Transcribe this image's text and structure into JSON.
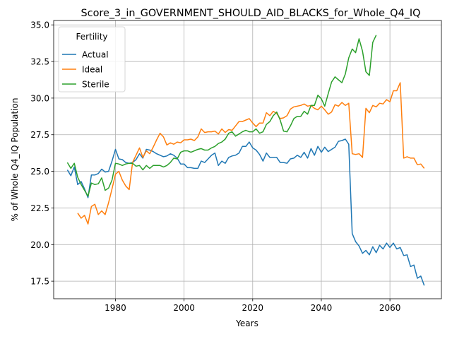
{
  "chart_data": {
    "type": "line",
    "title": "Score_3_in_GOVERNMENT_SHOULD_AID_BLACKS_for_Whole_Q4_IQ",
    "xlabel": "Years",
    "ylabel": "% of Whole Q4_IQ Population",
    "xlim": [
      1962,
      2075
    ],
    "ylim": [
      16.3,
      35.3
    ],
    "xticks": [
      1980,
      2000,
      2020,
      2040,
      2060
    ],
    "yticks": [
      17.5,
      20.0,
      22.5,
      25.0,
      27.5,
      30.0,
      32.5,
      35.0
    ],
    "grid": true,
    "legend": {
      "title": "Fertility",
      "placement": "top-left"
    },
    "series": [
      {
        "name": "Actual",
        "color": "#1f77b4",
        "points": [
          [
            1966,
            25.1
          ],
          [
            1967,
            24.7
          ],
          [
            1968,
            25.3
          ],
          [
            1969,
            24.1
          ],
          [
            1970,
            24.3
          ],
          [
            1971,
            23.8
          ],
          [
            1972,
            23.2
          ],
          [
            1973,
            24.75
          ],
          [
            1974,
            24.75
          ],
          [
            1975,
            24.85
          ],
          [
            1976,
            25.15
          ],
          [
            1977,
            24.95
          ],
          [
            1978,
            25.0
          ],
          [
            1979,
            25.7
          ],
          [
            1980,
            26.5
          ],
          [
            1981,
            25.85
          ],
          [
            1982,
            25.8
          ],
          [
            1983,
            25.6
          ],
          [
            1984,
            25.55
          ],
          [
            1985,
            25.6
          ],
          [
            1986,
            25.8
          ],
          [
            1987,
            26.2
          ],
          [
            1988,
            25.9
          ],
          [
            1989,
            26.5
          ],
          [
            1990,
            26.45
          ],
          [
            1991,
            26.35
          ],
          [
            1992,
            26.2
          ],
          [
            1993,
            26.1
          ],
          [
            1994,
            26.0
          ],
          [
            1995,
            26.05
          ],
          [
            1996,
            26.2
          ],
          [
            1997,
            26.1
          ],
          [
            1998,
            25.9
          ],
          [
            1999,
            25.5
          ],
          [
            2000,
            25.5
          ],
          [
            2001,
            25.25
          ],
          [
            2002,
            25.25
          ],
          [
            2003,
            25.2
          ],
          [
            2004,
            25.2
          ],
          [
            2005,
            25.7
          ],
          [
            2006,
            25.6
          ],
          [
            2007,
            25.85
          ],
          [
            2008,
            26.1
          ],
          [
            2009,
            26.25
          ],
          [
            2010,
            25.4
          ],
          [
            2011,
            25.7
          ],
          [
            2012,
            25.55
          ],
          [
            2013,
            25.95
          ],
          [
            2014,
            26.05
          ],
          [
            2015,
            26.1
          ],
          [
            2016,
            26.25
          ],
          [
            2017,
            26.7
          ],
          [
            2018,
            26.7
          ],
          [
            2019,
            27.0
          ],
          [
            2020,
            26.6
          ],
          [
            2021,
            26.45
          ],
          [
            2022,
            26.15
          ],
          [
            2023,
            25.7
          ],
          [
            2024,
            26.25
          ],
          [
            2025,
            25.95
          ],
          [
            2026,
            25.95
          ],
          [
            2027,
            25.95
          ],
          [
            2028,
            25.6
          ],
          [
            2029,
            25.6
          ],
          [
            2030,
            25.55
          ],
          [
            2031,
            25.85
          ],
          [
            2032,
            25.9
          ],
          [
            2033,
            26.1
          ],
          [
            2034,
            25.95
          ],
          [
            2035,
            26.3
          ],
          [
            2036,
            25.9
          ],
          [
            2037,
            26.55
          ],
          [
            2038,
            26.1
          ],
          [
            2039,
            26.7
          ],
          [
            2040,
            26.3
          ],
          [
            2041,
            26.65
          ],
          [
            2042,
            26.35
          ],
          [
            2043,
            26.5
          ],
          [
            2044,
            26.65
          ],
          [
            2045,
            27.05
          ],
          [
            2046,
            27.1
          ],
          [
            2047,
            27.2
          ],
          [
            2048,
            26.85
          ],
          [
            2049,
            20.75
          ],
          [
            2050,
            20.2
          ],
          [
            2051,
            19.9
          ],
          [
            2052,
            19.4
          ],
          [
            2053,
            19.6
          ],
          [
            2054,
            19.3
          ],
          [
            2055,
            19.85
          ],
          [
            2056,
            19.45
          ],
          [
            2057,
            19.95
          ],
          [
            2058,
            19.7
          ],
          [
            2059,
            20.1
          ],
          [
            2060,
            19.8
          ],
          [
            2061,
            20.1
          ],
          [
            2062,
            19.7
          ],
          [
            2063,
            19.8
          ],
          [
            2064,
            19.25
          ],
          [
            2065,
            19.3
          ],
          [
            2066,
            18.5
          ],
          [
            2067,
            18.6
          ],
          [
            2068,
            17.7
          ],
          [
            2069,
            17.85
          ],
          [
            2070,
            17.2
          ]
        ]
      },
      {
        "name": "Ideal",
        "color": "#ff7f0e",
        "points": [
          [
            1969,
            22.15
          ],
          [
            1970,
            21.8
          ],
          [
            1971,
            22.0
          ],
          [
            1972,
            21.4
          ],
          [
            1973,
            22.6
          ],
          [
            1974,
            22.75
          ],
          [
            1975,
            22.05
          ],
          [
            1976,
            22.3
          ],
          [
            1977,
            22.05
          ],
          [
            1978,
            22.85
          ],
          [
            1979,
            23.8
          ],
          [
            1980,
            24.8
          ],
          [
            1981,
            25.0
          ],
          [
            1982,
            24.4
          ],
          [
            1983,
            24.0
          ],
          [
            1984,
            23.75
          ],
          [
            1985,
            25.6
          ],
          [
            1986,
            26.1
          ],
          [
            1987,
            26.6
          ],
          [
            1988,
            25.95
          ],
          [
            1989,
            26.4
          ],
          [
            1990,
            26.2
          ],
          [
            1991,
            26.65
          ],
          [
            1992,
            27.15
          ],
          [
            1993,
            27.6
          ],
          [
            1994,
            27.35
          ],
          [
            1995,
            26.8
          ],
          [
            1996,
            26.95
          ],
          [
            1997,
            26.85
          ],
          [
            1998,
            27.0
          ],
          [
            1999,
            26.95
          ],
          [
            2000,
            27.15
          ],
          [
            2001,
            27.15
          ],
          [
            2002,
            27.2
          ],
          [
            2003,
            27.1
          ],
          [
            2004,
            27.35
          ],
          [
            2005,
            27.9
          ],
          [
            2006,
            27.65
          ],
          [
            2007,
            27.7
          ],
          [
            2008,
            27.7
          ],
          [
            2009,
            27.75
          ],
          [
            2010,
            27.55
          ],
          [
            2011,
            27.9
          ],
          [
            2012,
            27.65
          ],
          [
            2013,
            27.85
          ],
          [
            2014,
            27.8
          ],
          [
            2015,
            28.1
          ],
          [
            2016,
            28.4
          ],
          [
            2017,
            28.4
          ],
          [
            2018,
            28.5
          ],
          [
            2019,
            28.6
          ],
          [
            2020,
            28.3
          ],
          [
            2021,
            28.05
          ],
          [
            2022,
            28.3
          ],
          [
            2023,
            28.3
          ],
          [
            2024,
            29.0
          ],
          [
            2025,
            28.8
          ],
          [
            2026,
            29.1
          ],
          [
            2027,
            28.95
          ],
          [
            2028,
            28.6
          ],
          [
            2029,
            28.65
          ],
          [
            2030,
            28.8
          ],
          [
            2031,
            29.25
          ],
          [
            2032,
            29.4
          ],
          [
            2033,
            29.45
          ],
          [
            2034,
            29.5
          ],
          [
            2035,
            29.6
          ],
          [
            2036,
            29.45
          ],
          [
            2037,
            29.5
          ],
          [
            2038,
            29.3
          ],
          [
            2039,
            29.2
          ],
          [
            2040,
            29.45
          ],
          [
            2041,
            29.2
          ],
          [
            2042,
            28.9
          ],
          [
            2043,
            29.05
          ],
          [
            2044,
            29.55
          ],
          [
            2045,
            29.45
          ],
          [
            2046,
            29.7
          ],
          [
            2047,
            29.5
          ],
          [
            2048,
            29.65
          ],
          [
            2049,
            26.2
          ],
          [
            2050,
            26.15
          ],
          [
            2051,
            26.2
          ],
          [
            2052,
            25.95
          ],
          [
            2053,
            29.3
          ],
          [
            2054,
            29.0
          ],
          [
            2055,
            29.5
          ],
          [
            2056,
            29.4
          ],
          [
            2057,
            29.65
          ],
          [
            2058,
            29.6
          ],
          [
            2059,
            29.9
          ],
          [
            2060,
            29.75
          ],
          [
            2061,
            30.5
          ],
          [
            2062,
            30.5
          ],
          [
            2063,
            31.05
          ],
          [
            2064,
            25.9
          ],
          [
            2065,
            26.0
          ],
          [
            2066,
            25.9
          ],
          [
            2067,
            25.9
          ],
          [
            2068,
            25.45
          ],
          [
            2069,
            25.5
          ],
          [
            2070,
            25.2
          ]
        ]
      },
      {
        "name": "Sterile",
        "color": "#2ca02c",
        "points": [
          [
            1966,
            25.6
          ],
          [
            1967,
            25.2
          ],
          [
            1968,
            25.55
          ],
          [
            1969,
            24.6
          ],
          [
            1970,
            24.1
          ],
          [
            1971,
            23.7
          ],
          [
            1972,
            23.3
          ],
          [
            1973,
            24.2
          ],
          [
            1974,
            24.1
          ],
          [
            1975,
            24.15
          ],
          [
            1976,
            24.55
          ],
          [
            1977,
            23.7
          ],
          [
            1978,
            23.85
          ],
          [
            1979,
            24.4
          ],
          [
            1980,
            25.55
          ],
          [
            1981,
            25.5
          ],
          [
            1982,
            25.4
          ],
          [
            1983,
            25.5
          ],
          [
            1984,
            25.55
          ],
          [
            1985,
            25.55
          ],
          [
            1986,
            25.35
          ],
          [
            1987,
            25.4
          ],
          [
            1988,
            25.1
          ],
          [
            1989,
            25.4
          ],
          [
            1990,
            25.2
          ],
          [
            1991,
            25.4
          ],
          [
            1992,
            25.4
          ],
          [
            1993,
            25.4
          ],
          [
            1994,
            25.3
          ],
          [
            1995,
            25.4
          ],
          [
            1996,
            25.6
          ],
          [
            1997,
            25.9
          ],
          [
            1998,
            25.85
          ],
          [
            1999,
            26.3
          ],
          [
            2000,
            26.4
          ],
          [
            2001,
            26.4
          ],
          [
            2002,
            26.3
          ],
          [
            2003,
            26.4
          ],
          [
            2004,
            26.5
          ],
          [
            2005,
            26.55
          ],
          [
            2006,
            26.45
          ],
          [
            2007,
            26.45
          ],
          [
            2008,
            26.6
          ],
          [
            2009,
            26.7
          ],
          [
            2010,
            26.9
          ],
          [
            2011,
            27.0
          ],
          [
            2012,
            27.2
          ],
          [
            2013,
            27.6
          ],
          [
            2014,
            27.7
          ],
          [
            2015,
            27.4
          ],
          [
            2016,
            27.55
          ],
          [
            2017,
            27.7
          ],
          [
            2018,
            27.8
          ],
          [
            2019,
            27.7
          ],
          [
            2020,
            27.7
          ],
          [
            2021,
            27.9
          ],
          [
            2022,
            27.6
          ],
          [
            2023,
            27.7
          ],
          [
            2024,
            28.2
          ],
          [
            2025,
            28.4
          ],
          [
            2026,
            28.8
          ],
          [
            2027,
            29.05
          ],
          [
            2028,
            28.5
          ],
          [
            2029,
            27.75
          ],
          [
            2030,
            27.7
          ],
          [
            2031,
            28.1
          ],
          [
            2032,
            28.6
          ],
          [
            2033,
            28.75
          ],
          [
            2034,
            28.75
          ],
          [
            2035,
            29.1
          ],
          [
            2036,
            28.9
          ],
          [
            2037,
            29.5
          ],
          [
            2038,
            29.5
          ],
          [
            2039,
            30.2
          ],
          [
            2040,
            29.95
          ],
          [
            2041,
            29.45
          ],
          [
            2042,
            30.3
          ],
          [
            2043,
            31.1
          ],
          [
            2044,
            31.45
          ],
          [
            2045,
            31.25
          ],
          [
            2046,
            31.05
          ],
          [
            2047,
            31.65
          ],
          [
            2048,
            32.75
          ],
          [
            2049,
            33.35
          ],
          [
            2050,
            33.1
          ],
          [
            2051,
            34.05
          ],
          [
            2052,
            33.2
          ],
          [
            2053,
            31.8
          ],
          [
            2054,
            31.55
          ],
          [
            2055,
            33.8
          ],
          [
            2056,
            34.3
          ]
        ]
      }
    ]
  }
}
